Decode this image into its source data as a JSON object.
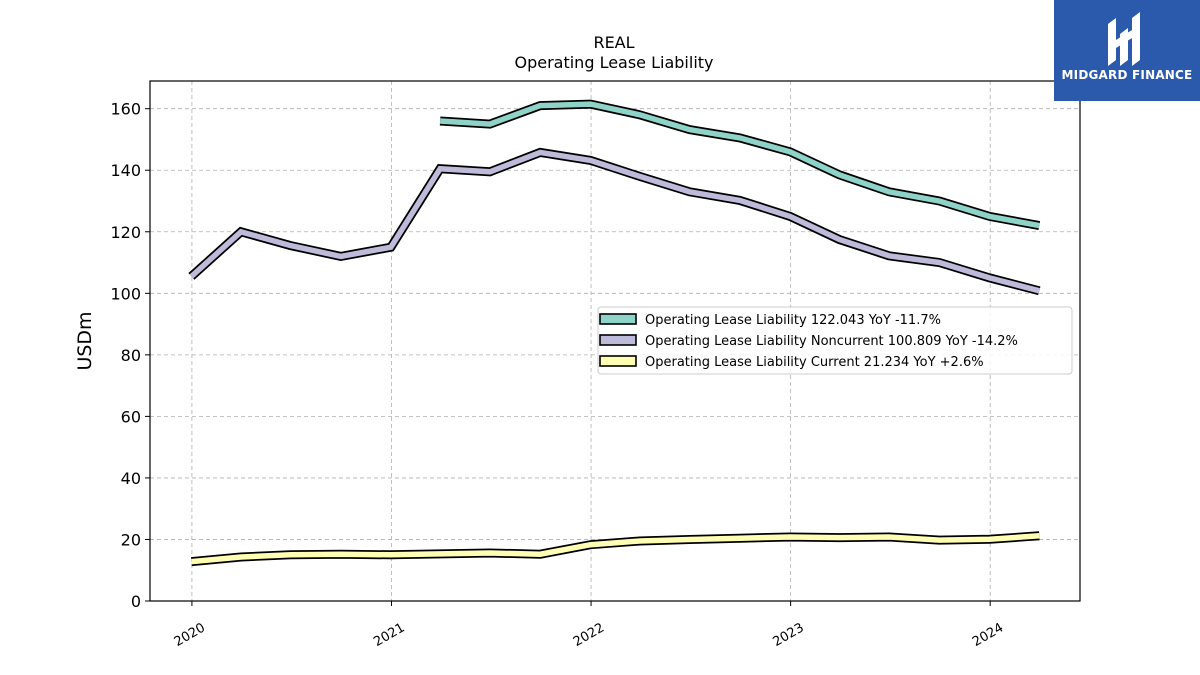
{
  "brand": {
    "name": "MIDGARD FINANCE",
    "bg_color": "#2b5aad"
  },
  "chart_data": {
    "type": "line",
    "title": "REAL",
    "subtitle": "Operating Lease Liability",
    "xlabel": "",
    "ylabel": "USDm",
    "ylim": [
      0,
      169
    ],
    "xlim": [
      2019.79,
      2024.45
    ],
    "yticks": [
      0,
      20,
      40,
      60,
      80,
      100,
      120,
      140,
      160
    ],
    "xticks": [
      "2020",
      "2021",
      "2022",
      "2023",
      "2024"
    ],
    "grid": true,
    "legend_position": "right-center",
    "series": [
      {
        "name": "Operating Lease Liability",
        "legend_label": "Operating Lease Liability  122.043 YoY -11.7%",
        "color": "#8dd3c7",
        "x": [
          "2021-03-31",
          "2021-06-30",
          "2021-09-30",
          "2021-12-31",
          "2022-03-31",
          "2022-06-30",
          "2022-09-30",
          "2022-12-31",
          "2023-03-31",
          "2023-06-30",
          "2023-09-30",
          "2023-12-31",
          "2024-03-31"
        ],
        "y": [
          156.0,
          155.0,
          161.0,
          161.5,
          158.0,
          153.2,
          150.5,
          146.0,
          138.5,
          133.0,
          130.0,
          125.0,
          122.0
        ]
      },
      {
        "name": "Operating Lease Liability Noncurrent",
        "legend_label": "Operating Lease Liability Noncurrent  100.809 YoY -14.2%",
        "color": "#bebada",
        "x": [
          "2019-12-31",
          "2020-03-31",
          "2020-06-30",
          "2020-09-30",
          "2020-12-31",
          "2021-03-31",
          "2021-06-30",
          "2021-09-30",
          "2021-12-31",
          "2022-03-31",
          "2022-06-30",
          "2022-09-30",
          "2022-12-31",
          "2023-03-31",
          "2023-06-30",
          "2023-09-30",
          "2023-12-31",
          "2024-03-31"
        ],
        "y": [
          105.5,
          120.0,
          115.5,
          112.0,
          115.0,
          140.5,
          139.5,
          145.8,
          143.2,
          138.0,
          133.0,
          130.2,
          125.0,
          117.5,
          112.2,
          110.0,
          105.0,
          100.8
        ]
      },
      {
        "name": "Operating Lease Liability Current",
        "legend_label": "Operating Lease Liability Current  21.234 YoY +2.6%",
        "color": "#ffffb3",
        "x": [
          "2019-12-31",
          "2020-03-31",
          "2020-06-30",
          "2020-09-30",
          "2020-12-31",
          "2021-03-31",
          "2021-06-30",
          "2021-09-30",
          "2021-12-31",
          "2022-03-31",
          "2022-06-30",
          "2022-09-30",
          "2022-12-31",
          "2023-03-31",
          "2023-06-30",
          "2023-09-30",
          "2023-12-31",
          "2024-03-31"
        ],
        "y": [
          12.8,
          14.3,
          15.0,
          15.2,
          15.0,
          15.3,
          15.6,
          15.2,
          18.3,
          19.5,
          20.0,
          20.4,
          20.8,
          20.6,
          20.8,
          19.8,
          20.1,
          21.2
        ]
      }
    ]
  }
}
